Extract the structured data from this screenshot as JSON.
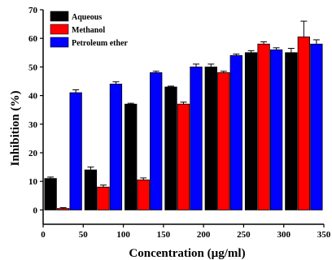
{
  "chart_data": {
    "type": "bar",
    "xlabel": "Concentration (µg/ml)",
    "ylabel": "Inhibition (%)",
    "xlim": [
      0,
      350
    ],
    "ylim": [
      -5,
      70
    ],
    "x_ticks": [
      0,
      50,
      100,
      150,
      200,
      250,
      300,
      350
    ],
    "y_ticks": [
      0,
      10,
      20,
      30,
      40,
      50,
      60,
      70
    ],
    "legend_position": "top-left",
    "grid": false,
    "groups": [
      25,
      75,
      125,
      175,
      225,
      275,
      325
    ],
    "series": [
      {
        "name": "Aqueous",
        "color": "#000000",
        "values": [
          11,
          14,
          37,
          43,
          50,
          55,
          55
        ],
        "errors": [
          0.5,
          1,
          0.3,
          0.3,
          1,
          0.7,
          1.5
        ]
      },
      {
        "name": "Methanol",
        "color": "#ff0000",
        "values": [
          0.5,
          8,
          10.5,
          37,
          48,
          58,
          60.5
        ],
        "errors": [
          0.3,
          0.7,
          0.7,
          0.7,
          0.5,
          0.8,
          5.5
        ]
      },
      {
        "name": "Petroleum ether",
        "color": "#0000ff",
        "values": [
          41,
          44,
          48,
          50,
          54,
          56,
          58
        ],
        "errors": [
          1,
          0.8,
          0.5,
          1,
          0.5,
          0.7,
          1.5
        ]
      }
    ]
  }
}
